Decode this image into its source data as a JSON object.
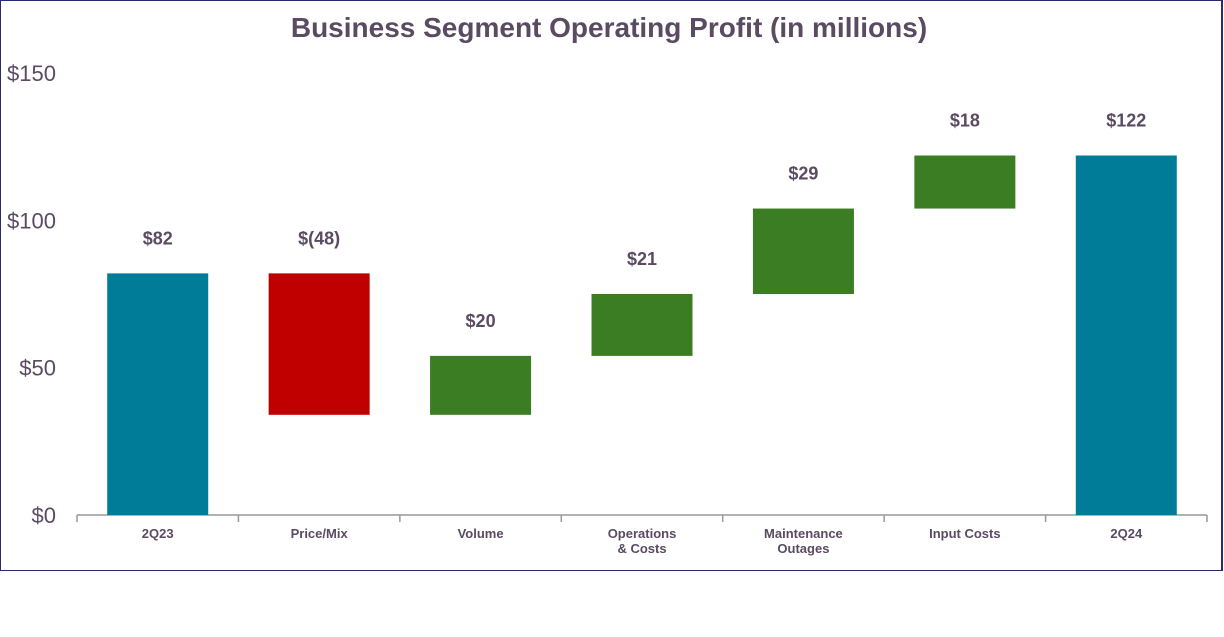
{
  "chart_data": {
    "type": "waterfall",
    "title": "Business Segment Operating Profit (in millions)",
    "categories": [
      "2Q23",
      "Price/Mix",
      "Volume",
      "Operations\n& Costs",
      "Maintenance\nOutages",
      "Input Costs",
      "2Q24"
    ],
    "values": [
      82,
      -48,
      20,
      21,
      29,
      18,
      122
    ],
    "kinds": [
      "total",
      "delta",
      "delta",
      "delta",
      "delta",
      "delta",
      "total"
    ],
    "data_labels": [
      "$82",
      "$(48)",
      "$20",
      "$21",
      "$29",
      "$18",
      "$122"
    ],
    "yticks": [
      0,
      50,
      100,
      150
    ],
    "ytick_labels": [
      "$0",
      "$50",
      "$100",
      "$150"
    ],
    "ylim": [
      0,
      150
    ],
    "grid": false,
    "colors": {
      "total": "#007c99",
      "increase": "#3a7d22",
      "decrease": "#c00000",
      "text": "#5a4a62",
      "border": "#2a2a6e"
    }
  }
}
